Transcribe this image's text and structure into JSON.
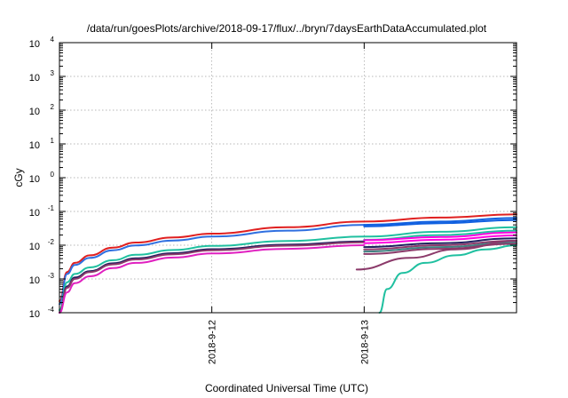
{
  "chart_data": {
    "type": "line",
    "title": "/data/run/goesPlots/archive/2018-09-17/flux/../bryn/7daysEarthDataAccumulated.plot",
    "xlabel": "Coordinated Universal Time (UTC)",
    "ylabel": "cGy",
    "y_scale": "log",
    "ylim": [
      0.0001,
      10000
    ],
    "xlim": [
      0,
      3
    ],
    "x_unit": "days since the left edge of the plot",
    "grid": true,
    "legend": "none",
    "y_ticks": [
      {
        "value": 0.0001,
        "base": "10",
        "exp": "-4"
      },
      {
        "value": 0.001,
        "base": "10",
        "exp": "-3"
      },
      {
        "value": 0.01,
        "base": "10",
        "exp": "-2"
      },
      {
        "value": 0.1,
        "base": "10",
        "exp": "-1"
      },
      {
        "value": 1,
        "base": "10",
        "exp": "0"
      },
      {
        "value": 10,
        "base": "10",
        "exp": "1"
      },
      {
        "value": 100,
        "base": "10",
        "exp": "2"
      },
      {
        "value": 1000,
        "base": "10",
        "exp": "3"
      },
      {
        "value": 10000,
        "base": "10",
        "exp": "4"
      }
    ],
    "x_ticks": [
      {
        "value": 1,
        "label": "2018-9-12"
      },
      {
        "value": 2,
        "label": "2018-9-13"
      }
    ],
    "series": [
      {
        "color": "#e02020",
        "x": [
          0,
          0.05,
          0.1,
          0.2,
          0.35,
          0.5,
          0.75,
          1,
          1.5,
          2
        ],
        "y": [
          0.00022,
          0.0016,
          0.003,
          0.005,
          0.0085,
          0.012,
          0.017,
          0.022,
          0.034,
          0.05
        ]
      },
      {
        "color": "#2f6fe0",
        "x": [
          0,
          0.05,
          0.1,
          0.2,
          0.35,
          0.5,
          0.75,
          1,
          1.5,
          2
        ],
        "y": [
          0.00018,
          0.0014,
          0.0026,
          0.0042,
          0.0071,
          0.0099,
          0.0138,
          0.018,
          0.027,
          0.04
        ]
      },
      {
        "color": "#20c0a0",
        "x": [
          0,
          0.05,
          0.1,
          0.2,
          0.35,
          0.5,
          0.75,
          1,
          1.5,
          2
        ],
        "y": [
          0.00012,
          0.0008,
          0.0014,
          0.0022,
          0.0036,
          0.0052,
          0.0072,
          0.0095,
          0.0133,
          0.018
        ]
      },
      {
        "color": "#202060",
        "x": [
          0,
          0.05,
          0.1,
          0.2,
          0.35,
          0.5,
          0.75,
          1,
          1.5,
          2
        ],
        "y": [
          9e-05,
          0.0006,
          0.0011,
          0.0017,
          0.0029,
          0.0041,
          0.0058,
          0.0076,
          0.0104,
          0.013
        ]
      },
      {
        "color": "#8b3a6a",
        "x": [
          0,
          0.05,
          0.1,
          0.2,
          0.35,
          0.5,
          0.75,
          1,
          1.5,
          2
        ],
        "y": [
          8e-05,
          0.00055,
          0.001,
          0.0016,
          0.0027,
          0.0038,
          0.0054,
          0.0071,
          0.0097,
          0.0122
        ]
      },
      {
        "color": "#e020c0",
        "x": [
          0,
          0.05,
          0.1,
          0.2,
          0.35,
          0.5,
          0.75,
          1,
          1.5,
          2
        ],
        "y": [
          7e-05,
          0.0004,
          0.00075,
          0.0012,
          0.0021,
          0.003,
          0.0043,
          0.0057,
          0.0078,
          0.01
        ]
      },
      {
        "color": "#e02020",
        "x": [
          2,
          2.5,
          3
        ],
        "y": [
          0.05,
          0.066,
          0.082
        ]
      },
      {
        "color": "#1060e0",
        "x": [
          2,
          2.5,
          3
        ],
        "y": [
          0.04,
          0.05,
          0.064
        ]
      },
      {
        "color": "#1060e0",
        "x": [
          2,
          2.5,
          3
        ],
        "y": [
          0.036,
          0.045,
          0.056
        ]
      },
      {
        "color": "#20c0a0",
        "x": [
          2,
          2.5,
          3
        ],
        "y": [
          0.018,
          0.025,
          0.034
        ]
      },
      {
        "color": "#20c0a0",
        "x": [
          2,
          2.5,
          3
        ],
        "y": [
          0.0145,
          0.02,
          0.027
        ]
      },
      {
        "color": "#ff00e0",
        "x": [
          2,
          2.5,
          3
        ],
        "y": [
          0.014,
          0.0175,
          0.024
        ]
      },
      {
        "color": "#ff00e0",
        "x": [
          2,
          2.5,
          3
        ],
        "y": [
          0.0115,
          0.0145,
          0.0195
        ]
      },
      {
        "color": "#202060",
        "x": [
          2,
          2.5,
          3
        ],
        "y": [
          0.0088,
          0.0115,
          0.016
        ]
      },
      {
        "color": "#8b3a6a",
        "x": [
          2,
          2.5,
          3
        ],
        "y": [
          0.0075,
          0.01,
          0.0135
        ]
      },
      {
        "color": "#408080",
        "x": [
          2,
          2.5,
          3
        ],
        "y": [
          0.0065,
          0.0088,
          0.012
        ]
      },
      {
        "color": "#8b3a6a",
        "x": [
          2,
          2.5,
          3
        ],
        "y": [
          0.0055,
          0.0078,
          0.011
        ]
      },
      {
        "color": "#8b3a6a",
        "x": [
          1.95,
          2.3,
          2.6,
          3
        ],
        "y": [
          0.0019,
          0.0042,
          0.0075,
          0.0135
        ]
      },
      {
        "color": "#20c0a0",
        "x": [
          2.1,
          2.15,
          2.25,
          2.4,
          2.6,
          2.8,
          3
        ],
        "y": [
          0.0001,
          0.0005,
          0.0015,
          0.003,
          0.005,
          0.0075,
          0.01
        ]
      }
    ]
  }
}
